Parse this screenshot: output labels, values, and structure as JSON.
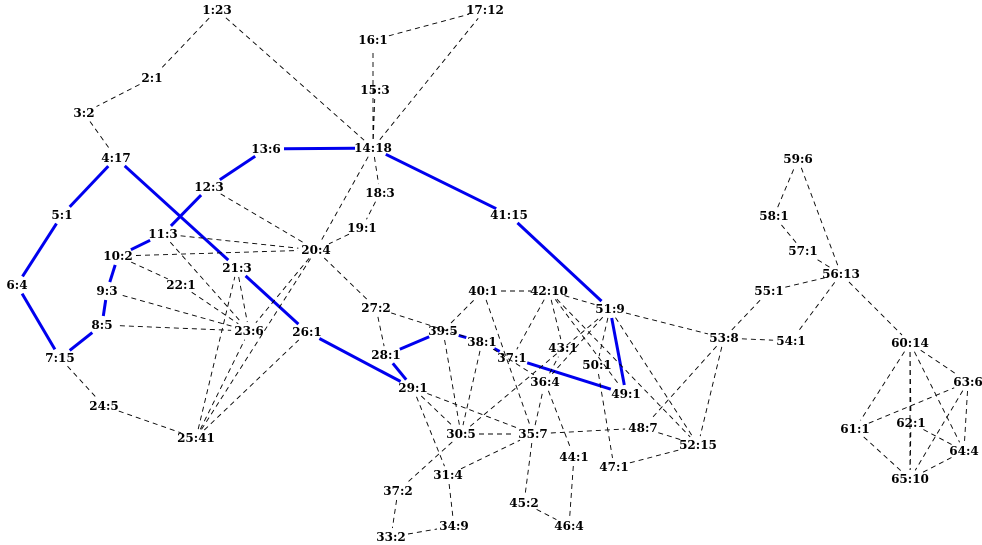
{
  "diagram": {
    "colors": {
      "path_edge": "#0000ee",
      "dashed_edge": "#000000",
      "label": "#000000",
      "background": "#ffffff"
    },
    "nodes": [
      {
        "id": 1,
        "label": "1:23"
      },
      {
        "id": 2,
        "label": "2:1"
      },
      {
        "id": 3,
        "label": "3:2"
      },
      {
        "id": 4,
        "label": "4:17"
      },
      {
        "id": 5,
        "label": "5:1"
      },
      {
        "id": 6,
        "label": "6:4"
      },
      {
        "id": 7,
        "label": "7:15"
      },
      {
        "id": 8,
        "label": "8:5"
      },
      {
        "id": 9,
        "label": "9:3"
      },
      {
        "id": 10,
        "label": "10:2"
      },
      {
        "id": 11,
        "label": "11:3"
      },
      {
        "id": 12,
        "label": "12:3"
      },
      {
        "id": 13,
        "label": "13:6"
      },
      {
        "id": 14,
        "label": "14:18"
      },
      {
        "id": 15,
        "label": "15:3"
      },
      {
        "id": 16,
        "label": "16:1"
      },
      {
        "id": 17,
        "label": "17:12"
      },
      {
        "id": 18,
        "label": "18:3"
      },
      {
        "id": 19,
        "label": "19:1"
      },
      {
        "id": 20,
        "label": "20:4"
      },
      {
        "id": 21,
        "label": "21:3"
      },
      {
        "id": 22,
        "label": "22:1"
      },
      {
        "id": 23,
        "label": "23:6"
      },
      {
        "id": 24,
        "label": "24:5"
      },
      {
        "id": 25,
        "label": "25:41"
      },
      {
        "id": 26,
        "label": "26:1"
      },
      {
        "id": 27,
        "label": "27:2"
      },
      {
        "id": 28,
        "label": "28:1"
      },
      {
        "id": 29,
        "label": "29:1"
      },
      {
        "id": 30,
        "label": "30:5"
      },
      {
        "id": 31,
        "label": "31:4"
      },
      {
        "id": 33,
        "label": "33:2"
      },
      {
        "id": 34,
        "label": "34:9"
      },
      {
        "id": 35,
        "label": "35:7"
      },
      {
        "id": 36,
        "label": "36:4"
      },
      {
        "id": 37,
        "label": "37:1"
      },
      {
        "id": 372,
        "label": "37:2"
      },
      {
        "id": 38,
        "label": "38:1"
      },
      {
        "id": 39,
        "label": "39:5"
      },
      {
        "id": 40,
        "label": "40:1"
      },
      {
        "id": 41,
        "label": "41:15"
      },
      {
        "id": 42,
        "label": "42:10"
      },
      {
        "id": 43,
        "label": "43:1"
      },
      {
        "id": 44,
        "label": "44:1"
      },
      {
        "id": 45,
        "label": "45:2"
      },
      {
        "id": 46,
        "label": "46:4"
      },
      {
        "id": 47,
        "label": "47:1"
      },
      {
        "id": 48,
        "label": "48:7"
      },
      {
        "id": 49,
        "label": "49:1"
      },
      {
        "id": 50,
        "label": "50:1"
      },
      {
        "id": 51,
        "label": "51:9"
      },
      {
        "id": 52,
        "label": "52:15"
      },
      {
        "id": 53,
        "label": "53:8"
      },
      {
        "id": 54,
        "label": "54:1"
      },
      {
        "id": 55,
        "label": "55:1"
      },
      {
        "id": 56,
        "label": "56:13"
      },
      {
        "id": 57,
        "label": "57:1"
      },
      {
        "id": 58,
        "label": "58:1"
      },
      {
        "id": 59,
        "label": "59:6"
      },
      {
        "id": 60,
        "label": "60:14"
      },
      {
        "id": 61,
        "label": "61:1"
      },
      {
        "id": 62,
        "label": "62:1"
      },
      {
        "id": 63,
        "label": "63:6"
      },
      {
        "id": 64,
        "label": "64:4"
      },
      {
        "id": 65,
        "label": "65:10"
      }
    ],
    "edges": [
      [
        1,
        2,
        "dashed"
      ],
      [
        2,
        3,
        "dashed"
      ],
      [
        3,
        4,
        "dashed"
      ],
      [
        1,
        14,
        "dashed"
      ],
      [
        4,
        5,
        "path"
      ],
      [
        5,
        6,
        "path"
      ],
      [
        6,
        7,
        "path"
      ],
      [
        7,
        8,
        "path"
      ],
      [
        8,
        9,
        "path"
      ],
      [
        9,
        10,
        "path"
      ],
      [
        10,
        11,
        "path"
      ],
      [
        11,
        12,
        "path"
      ],
      [
        12,
        13,
        "path"
      ],
      [
        13,
        14,
        "path"
      ],
      [
        4,
        21,
        "path"
      ],
      [
        21,
        26,
        "path"
      ],
      [
        26,
        29,
        "path"
      ],
      [
        29,
        28,
        "path"
      ],
      [
        28,
        39,
        "path"
      ],
      [
        39,
        38,
        "path"
      ],
      [
        38,
        37,
        "path"
      ],
      [
        37,
        49,
        "path"
      ],
      [
        49,
        51,
        "path"
      ],
      [
        51,
        41,
        "path"
      ],
      [
        41,
        14,
        "path"
      ],
      [
        7,
        24,
        "dashed"
      ],
      [
        24,
        25,
        "dashed"
      ],
      [
        25,
        26,
        "dashed"
      ],
      [
        25,
        20,
        "dashed"
      ],
      [
        25,
        21,
        "dashed"
      ],
      [
        25,
        23,
        "dashed"
      ],
      [
        14,
        16,
        "dashed"
      ],
      [
        16,
        17,
        "dashed"
      ],
      [
        14,
        17,
        "dashed"
      ],
      [
        14,
        15,
        "dashed"
      ],
      [
        14,
        18,
        "dashed"
      ],
      [
        18,
        19,
        "dashed"
      ],
      [
        19,
        20,
        "dashed"
      ],
      [
        14,
        20,
        "dashed"
      ],
      [
        12,
        20,
        "dashed"
      ],
      [
        11,
        20,
        "dashed"
      ],
      [
        10,
        20,
        "dashed"
      ],
      [
        11,
        23,
        "dashed"
      ],
      [
        10,
        22,
        "dashed"
      ],
      [
        22,
        23,
        "dashed"
      ],
      [
        9,
        23,
        "dashed"
      ],
      [
        8,
        23,
        "dashed"
      ],
      [
        21,
        23,
        "dashed"
      ],
      [
        20,
        23,
        "dashed"
      ],
      [
        20,
        27,
        "dashed"
      ],
      [
        27,
        28,
        "dashed"
      ],
      [
        27,
        38,
        "dashed"
      ],
      [
        39,
        40,
        "dashed"
      ],
      [
        39,
        30,
        "dashed"
      ],
      [
        38,
        30,
        "dashed"
      ],
      [
        38,
        36,
        "dashed"
      ],
      [
        29,
        30,
        "dashed"
      ],
      [
        29,
        31,
        "dashed"
      ],
      [
        29,
        35,
        "dashed"
      ],
      [
        30,
        35,
        "dashed"
      ],
      [
        30,
        51,
        "dashed"
      ],
      [
        30,
        372,
        "dashed"
      ],
      [
        31,
        34,
        "dashed"
      ],
      [
        372,
        33,
        "dashed"
      ],
      [
        33,
        34,
        "dashed"
      ],
      [
        31,
        35,
        "dashed"
      ],
      [
        35,
        36,
        "dashed"
      ],
      [
        35,
        45,
        "dashed"
      ],
      [
        35,
        48,
        "dashed"
      ],
      [
        45,
        46,
        "dashed"
      ],
      [
        44,
        46,
        "dashed"
      ],
      [
        36,
        44,
        "dashed"
      ],
      [
        36,
        43,
        "dashed"
      ],
      [
        40,
        42,
        "dashed"
      ],
      [
        40,
        35,
        "dashed"
      ],
      [
        42,
        51,
        "dashed"
      ],
      [
        42,
        37,
        "dashed"
      ],
      [
        42,
        43,
        "dashed"
      ],
      [
        42,
        49,
        "dashed"
      ],
      [
        42,
        52,
        "dashed"
      ],
      [
        51,
        36,
        "dashed"
      ],
      [
        51,
        50,
        "dashed"
      ],
      [
        51,
        52,
        "dashed"
      ],
      [
        51,
        53,
        "dashed"
      ],
      [
        50,
        47,
        "dashed"
      ],
      [
        53,
        48,
        "dashed"
      ],
      [
        53,
        52,
        "dashed"
      ],
      [
        53,
        54,
        "dashed"
      ],
      [
        53,
        55,
        "dashed"
      ],
      [
        55,
        56,
        "dashed"
      ],
      [
        56,
        54,
        "dashed"
      ],
      [
        56,
        57,
        "dashed"
      ],
      [
        56,
        59,
        "dashed"
      ],
      [
        57,
        58,
        "dashed"
      ],
      [
        58,
        59,
        "dashed"
      ],
      [
        56,
        60,
        "dashed"
      ],
      [
        60,
        61,
        "dashed"
      ],
      [
        60,
        62,
        "dashed"
      ],
      [
        60,
        63,
        "dashed"
      ],
      [
        60,
        65,
        "dashed"
      ],
      [
        60,
        64,
        "dashed"
      ],
      [
        61,
        63,
        "dashed"
      ],
      [
        61,
        65,
        "dashed"
      ],
      [
        62,
        64,
        "dashed"
      ],
      [
        62,
        65,
        "dashed"
      ],
      [
        63,
        64,
        "dashed"
      ],
      [
        63,
        65,
        "dashed"
      ],
      [
        64,
        65,
        "dashed"
      ],
      [
        48,
        52,
        "dashed"
      ],
      [
        47,
        52,
        "dashed"
      ]
    ]
  }
}
